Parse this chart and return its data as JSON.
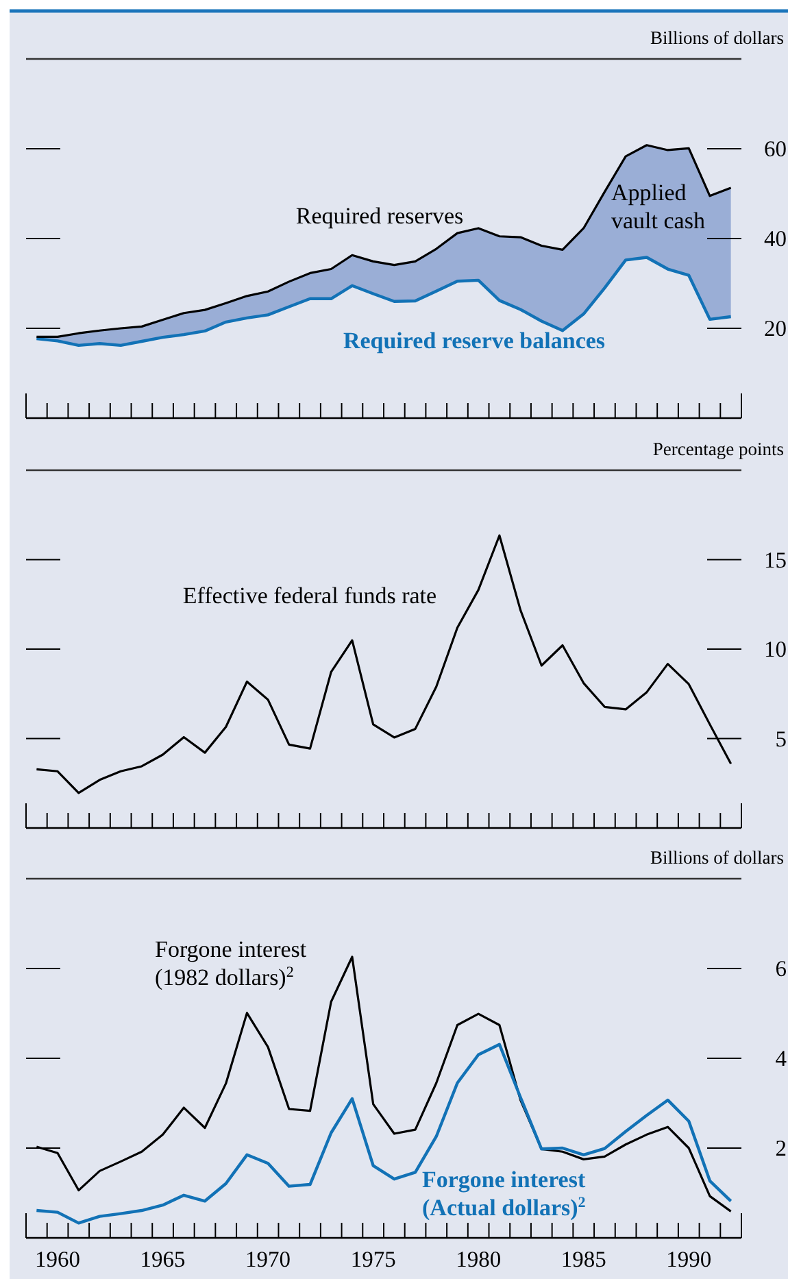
{
  "chart_data": [
    {
      "type": "line",
      "ylabel": "Billions of dollars",
      "x": [
        1959,
        1960,
        1961,
        1962,
        1963,
        1964,
        1965,
        1966,
        1967,
        1968,
        1969,
        1970,
        1971,
        1972,
        1973,
        1974,
        1975,
        1976,
        1977,
        1978,
        1979,
        1980,
        1981,
        1982,
        1983,
        1984,
        1985,
        1986,
        1987,
        1988,
        1989,
        1990,
        1991,
        1992
      ],
      "xlim": [
        1958.5,
        1992.5
      ],
      "xticks": [
        {
          "value": 1958.5,
          "label": null
        },
        {
          "value": 1959.5,
          "label": null
        },
        {
          "value": 1960.5,
          "label": null
        },
        {
          "value": 1961.5,
          "label": null
        },
        {
          "value": 1962.5,
          "label": null
        },
        {
          "value": 1963.5,
          "label": null
        },
        {
          "value": 1964.5,
          "label": null
        },
        {
          "value": 1965.5,
          "label": null
        },
        {
          "value": 1966.5,
          "label": null
        },
        {
          "value": 1967.5,
          "label": null
        },
        {
          "value": 1968.5,
          "label": null
        },
        {
          "value": 1969.5,
          "label": null
        },
        {
          "value": 1970.5,
          "label": null
        },
        {
          "value": 1971.5,
          "label": null
        },
        {
          "value": 1972.5,
          "label": null
        },
        {
          "value": 1973.5,
          "label": null
        },
        {
          "value": 1974.5,
          "label": null
        },
        {
          "value": 1975.5,
          "label": null
        },
        {
          "value": 1976.5,
          "label": null
        },
        {
          "value": 1977.5,
          "label": null
        },
        {
          "value": 1978.5,
          "label": null
        },
        {
          "value": 1979.5,
          "label": null
        },
        {
          "value": 1980.5,
          "label": null
        },
        {
          "value": 1981.5,
          "label": null
        },
        {
          "value": 1982.5,
          "label": null
        },
        {
          "value": 1983.5,
          "label": null
        },
        {
          "value": 1984.5,
          "label": null
        },
        {
          "value": 1985.5,
          "label": null
        },
        {
          "value": 1986.5,
          "label": null
        },
        {
          "value": 1987.5,
          "label": null
        },
        {
          "value": 1988.5,
          "label": null
        },
        {
          "value": 1989.5,
          "label": null
        },
        {
          "value": 1990.5,
          "label": null
        },
        {
          "value": 1991.5,
          "label": null
        },
        {
          "value": 1992.5,
          "label": null
        }
      ],
      "ylim": [
        0,
        80
      ],
      "yticks": [
        20,
        40,
        60
      ],
      "tick_labels": "y",
      "series": [
        {
          "name": "Required reserve balances",
          "color": "#1272b6",
          "values": [
            17.7,
            17.2,
            16.2,
            16.6,
            16.2,
            17.1,
            18.0,
            18.6,
            19.4,
            21.4,
            22.3,
            23.0,
            24.8,
            26.6,
            26.6,
            29.5,
            27.7,
            26.0,
            26.1,
            28.3,
            30.5,
            30.7,
            26.2,
            24.2,
            21.6,
            19.5,
            23.2,
            29.0,
            35.2,
            35.8,
            33.2,
            31.8,
            22.0,
            22.6
          ]
        },
        {
          "name": "Required reserves",
          "color": "#000000",
          "values": [
            18.1,
            18.1,
            18.9,
            19.5,
            20.0,
            20.4,
            21.9,
            23.4,
            24.1,
            25.6,
            27.2,
            28.2,
            30.4,
            32.3,
            33.2,
            36.3,
            34.9,
            34.1,
            34.9,
            37.7,
            41.2,
            42.3,
            40.5,
            40.3,
            38.4,
            37.5,
            42.3,
            50.4,
            58.3,
            60.8,
            59.7,
            60.1,
            49.5,
            51.3
          ],
          "lower": [
            17.7,
            17.2,
            16.2,
            16.6,
            16.2,
            17.1,
            18.0,
            18.6,
            19.4,
            21.4,
            22.3,
            23.0,
            24.8,
            26.6,
            26.6,
            29.5,
            27.7,
            26.0,
            26.1,
            28.3,
            30.5,
            30.7,
            26.2,
            24.2,
            21.6,
            19.5,
            23.2,
            29.0,
            35.2,
            35.8,
            33.2,
            31.8,
            22.0,
            22.6
          ],
          "upper": [
            18.1,
            18.1,
            18.9,
            19.5,
            20.0,
            20.4,
            21.9,
            23.4,
            24.1,
            25.6,
            27.2,
            28.2,
            30.4,
            32.3,
            33.2,
            36.3,
            34.9,
            34.1,
            34.9,
            37.7,
            41.2,
            42.3,
            40.5,
            40.3,
            38.4,
            37.5,
            42.3,
            50.4,
            58.3,
            60.8,
            59.7,
            60.1,
            49.5,
            51.3
          ]
        }
      ],
      "annotations": [
        "Applied vault cash"
      ]
    },
    {
      "type": "line",
      "ylabel": "Percentage points",
      "x": [
        1959,
        1960,
        1961,
        1962,
        1963,
        1964,
        1965,
        1966,
        1967,
        1968,
        1969,
        1970,
        1971,
        1972,
        1973,
        1974,
        1975,
        1976,
        1977,
        1978,
        1979,
        1980,
        1981,
        1982,
        1983,
        1984,
        1985,
        1986,
        1987,
        1988,
        1989,
        1990,
        1991,
        1992
      ],
      "xlim": [
        1958.5,
        1992.5
      ],
      "xticks": [
        {
          "value": 1958.5,
          "label": null
        },
        {
          "value": 1959.5,
          "label": null
        },
        {
          "value": 1960.5,
          "label": null
        },
        {
          "value": 1961.5,
          "label": null
        },
        {
          "value": 1962.5,
          "label": null
        },
        {
          "value": 1963.5,
          "label": null
        },
        {
          "value": 1964.5,
          "label": null
        },
        {
          "value": 1965.5,
          "label": null
        },
        {
          "value": 1966.5,
          "label": null
        },
        {
          "value": 1967.5,
          "label": null
        },
        {
          "value": 1968.5,
          "label": null
        },
        {
          "value": 1969.5,
          "label": null
        },
        {
          "value": 1970.5,
          "label": null
        },
        {
          "value": 1971.5,
          "label": null
        },
        {
          "value": 1972.5,
          "label": null
        },
        {
          "value": 1973.5,
          "label": null
        },
        {
          "value": 1974.5,
          "label": null
        },
        {
          "value": 1975.5,
          "label": null
        },
        {
          "value": 1976.5,
          "label": null
        },
        {
          "value": 1977.5,
          "label": null
        },
        {
          "value": 1978.5,
          "label": null
        },
        {
          "value": 1979.5,
          "label": null
        },
        {
          "value": 1980.5,
          "label": null
        },
        {
          "value": 1981.5,
          "label": null
        },
        {
          "value": 1982.5,
          "label": null
        },
        {
          "value": 1983.5,
          "label": null
        },
        {
          "value": 1984.5,
          "label": null
        },
        {
          "value": 1985.5,
          "label": null
        },
        {
          "value": 1986.5,
          "label": null
        },
        {
          "value": 1987.5,
          "label": null
        },
        {
          "value": 1988.5,
          "label": null
        },
        {
          "value": 1989.5,
          "label": null
        },
        {
          "value": 1990.5,
          "label": null
        },
        {
          "value": 1991.5,
          "label": null
        },
        {
          "value": 1992.5,
          "label": null
        }
      ],
      "ylim": [
        0,
        20
      ],
      "yticks": [
        5,
        10,
        15
      ],
      "tick_labels": "y",
      "series": [
        {
          "name": "Effective federal funds rate",
          "color": "#000000",
          "values": [
            3.28,
            3.17,
            1.96,
            2.69,
            3.17,
            3.45,
            4.1,
            5.08,
            4.21,
            5.65,
            8.18,
            7.17,
            4.66,
            4.44,
            8.72,
            10.49,
            5.79,
            5.06,
            5.54,
            7.9,
            11.2,
            13.31,
            16.35,
            12.18,
            9.08,
            10.21,
            8.1,
            6.77,
            6.63,
            7.59,
            9.17,
            8.04,
            5.79,
            3.59
          ]
        }
      ]
    },
    {
      "type": "line",
      "ylabel": "Billions of dollars",
      "x": [
        1959,
        1960,
        1961,
        1962,
        1963,
        1964,
        1965,
        1966,
        1967,
        1968,
        1969,
        1970,
        1971,
        1972,
        1973,
        1974,
        1975,
        1976,
        1977,
        1978,
        1979,
        1980,
        1981,
        1982,
        1983,
        1984,
        1985,
        1986,
        1987,
        1988,
        1989,
        1990,
        1991,
        1992
      ],
      "xlim": [
        1958.5,
        1992.5
      ],
      "xticks": [
        {
          "value": 1958.5,
          "label": null
        },
        {
          "value": 1959.5,
          "label": null
        },
        {
          "value": 1960,
          "label": "1960"
        },
        {
          "value": 1960.5,
          "label": null
        },
        {
          "value": 1961.5,
          "label": null
        },
        {
          "value": 1962.5,
          "label": null
        },
        {
          "value": 1963.5,
          "label": null
        },
        {
          "value": 1964.5,
          "label": null
        },
        {
          "value": 1965,
          "label": "1965"
        },
        {
          "value": 1965.5,
          "label": null
        },
        {
          "value": 1966.5,
          "label": null
        },
        {
          "value": 1967.5,
          "label": null
        },
        {
          "value": 1968.5,
          "label": null
        },
        {
          "value": 1969.5,
          "label": null
        },
        {
          "value": 1970,
          "label": "1970"
        },
        {
          "value": 1970.5,
          "label": null
        },
        {
          "value": 1971.5,
          "label": null
        },
        {
          "value": 1972.5,
          "label": null
        },
        {
          "value": 1973.5,
          "label": null
        },
        {
          "value": 1974.5,
          "label": null
        },
        {
          "value": 1975,
          "label": "1975"
        },
        {
          "value": 1975.5,
          "label": null
        },
        {
          "value": 1976.5,
          "label": null
        },
        {
          "value": 1977.5,
          "label": null
        },
        {
          "value": 1978.5,
          "label": null
        },
        {
          "value": 1979.5,
          "label": null
        },
        {
          "value": 1980,
          "label": "1980"
        },
        {
          "value": 1980.5,
          "label": null
        },
        {
          "value": 1981.5,
          "label": null
        },
        {
          "value": 1982.5,
          "label": null
        },
        {
          "value": 1983.5,
          "label": null
        },
        {
          "value": 1984.5,
          "label": null
        },
        {
          "value": 1985,
          "label": "1985"
        },
        {
          "value": 1985.5,
          "label": null
        },
        {
          "value": 1986.5,
          "label": null
        },
        {
          "value": 1987.5,
          "label": null
        },
        {
          "value": 1988.5,
          "label": null
        },
        {
          "value": 1989.5,
          "label": null
        },
        {
          "value": 1990,
          "label": "1990"
        },
        {
          "value": 1990.5,
          "label": null
        },
        {
          "value": 1991.5,
          "label": null
        },
        {
          "value": 1992.5,
          "label": null
        }
      ],
      "ylim": [
        0,
        8
      ],
      "yticks": [
        2,
        4,
        6
      ],
      "series": [
        {
          "name": "Forgone interest (1982 dollars)$^{2}$",
          "color": "#000000",
          "values": [
            2.03,
            1.89,
            1.06,
            1.49,
            1.7,
            1.92,
            2.3,
            2.9,
            2.45,
            3.44,
            5.01,
            4.25,
            2.87,
            2.83,
            5.26,
            6.26,
            2.98,
            2.32,
            2.41,
            3.45,
            4.74,
            4.99,
            4.74,
            3.07,
            1.98,
            1.92,
            1.75,
            1.81,
            2.08,
            2.3,
            2.47,
            2.0,
            0.93,
            0.59
          ]
        },
        {
          "name": "Forgone interest (Actual dollars)$^{2}$",
          "color": "#1272b6",
          "values": [
            0.61,
            0.57,
            0.33,
            0.48,
            0.54,
            0.61,
            0.73,
            0.95,
            0.82,
            1.21,
            1.85,
            1.66,
            1.15,
            1.19,
            2.34,
            3.1,
            1.61,
            1.31,
            1.46,
            2.26,
            3.45,
            4.08,
            4.31,
            3.13,
            1.98,
            2.0,
            1.85,
            1.99,
            2.37,
            2.73,
            3.07,
            2.6,
            1.27,
            0.82
          ]
        }
      ]
    }
  ]
}
